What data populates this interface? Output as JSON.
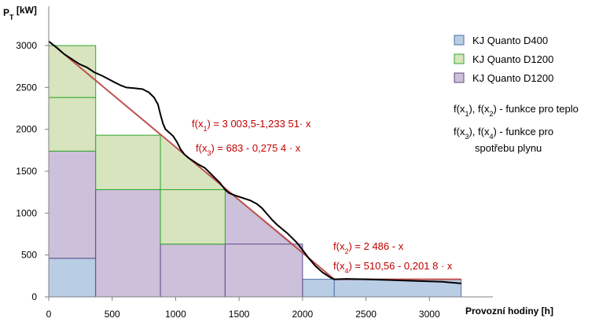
{
  "chart_data": {
    "type": "area",
    "ylabel": {
      "main": "P",
      "sub": "T",
      "unit": " [kW]"
    },
    "xlabel": "Provozní hodiny [h]",
    "xlim": [
      0,
      3500
    ],
    "ylim": [
      0,
      3000
    ],
    "xticks": [
      0,
      500,
      1000,
      1500,
      2000,
      2500,
      3000
    ],
    "yticks": [
      0,
      500,
      1000,
      1500,
      2000,
      2500,
      3000
    ],
    "grid": false,
    "legend_position": "right",
    "colors": {
      "d400_fill": "#b9cde5",
      "d400_stroke": "#4f6fa8",
      "d1200_green_fill": "#d7e4bd",
      "d1200_green_stroke": "#2ea82e",
      "d1200_purple_fill": "#ccc0da",
      "d1200_purple_stroke": "#5c4a87",
      "trend": "#c0504d",
      "curve": "#000000",
      "formula": "#c00000"
    },
    "blocks": [
      {
        "series": "D400",
        "x0": 0,
        "x1": 370,
        "y0": 0,
        "y1": 460
      },
      {
        "series": "D400",
        "x0": 370,
        "x1": 2250,
        "y0": 0,
        "y1": 0
      },
      {
        "series": "D400",
        "x0": 2000,
        "x1": 2250,
        "y0": 0,
        "y1": 210
      },
      {
        "series": "D400",
        "x0": 2250,
        "x1": 3250,
        "y0": 0,
        "y1": 210
      },
      {
        "series": "D1200-purple",
        "x0": 0,
        "x1": 370,
        "y0": 460,
        "y1": 1740
      },
      {
        "series": "D1200-purple",
        "x0": 370,
        "x1": 880,
        "y0": 0,
        "y1": 1280
      },
      {
        "series": "D1200-purple",
        "x0": 880,
        "x1": 1390,
        "y0": 0,
        "y1": 630
      },
      {
        "series": "D1200-purple",
        "x0": 1390,
        "x1": 2000,
        "y0": 0,
        "y1": 630
      },
      {
        "series": "D1200-green",
        "x0": 0,
        "x1": 370,
        "y0": 1740,
        "y1": 2380
      },
      {
        "series": "D1200-green",
        "x0": 0,
        "x1": 370,
        "y0": 2380,
        "y1": 3000
      },
      {
        "series": "D1200-green",
        "x0": 370,
        "x1": 880,
        "y0": 1280,
        "y1": 1930
      },
      {
        "series": "D1200-green",
        "x0": 880,
        "x1": 1390,
        "y0": 630,
        "y1": 1280
      }
    ],
    "green_wedges": [
      {
        "points": [
          [
            0,
            3000
          ],
          [
            370,
            2550
          ],
          [
            370,
            1930
          ],
          [
            880,
            1930
          ],
          [
            880,
            1920
          ],
          [
            1390,
            1290
          ],
          [
            1390,
            1280
          ],
          [
            0,
            1280
          ]
        ]
      }
    ],
    "purple_wedges": [
      {
        "points": [
          [
            1390,
            1280
          ],
          [
            1390,
            630
          ],
          [
            2000,
            630
          ],
          [
            2000,
            550
          ],
          [
            1440,
            1240
          ]
        ]
      }
    ],
    "series": [
      {
        "name": "KJ Quanto  D400",
        "fill": "#b9cde5",
        "stroke": "#4f6fa8"
      },
      {
        "name": "KJ Quanto  D1200",
        "fill": "#d7e4bd",
        "stroke": "#2ea82e"
      },
      {
        "name": "KJ Quanto  D1200",
        "fill": "#ccc0da",
        "stroke": "#5c4a87"
      }
    ],
    "trend_line": [
      [
        0,
        3050
      ],
      [
        2250,
        210
      ],
      [
        3250,
        210
      ]
    ],
    "load_curve": [
      [
        0,
        3050
      ],
      [
        60,
        2980
      ],
      [
        120,
        2900
      ],
      [
        180,
        2840
      ],
      [
        240,
        2780
      ],
      [
        300,
        2740
      ],
      [
        360,
        2680
      ],
      [
        420,
        2640
      ],
      [
        470,
        2600
      ],
      [
        520,
        2560
      ],
      [
        560,
        2530
      ],
      [
        610,
        2500
      ],
      [
        680,
        2490
      ],
      [
        740,
        2480
      ],
      [
        790,
        2440
      ],
      [
        830,
        2380
      ],
      [
        860,
        2300
      ],
      [
        880,
        2180
      ],
      [
        900,
        2070
      ],
      [
        920,
        2000
      ],
      [
        950,
        1960
      ],
      [
        980,
        1920
      ],
      [
        1010,
        1850
      ],
      [
        1040,
        1760
      ],
      [
        1070,
        1700
      ],
      [
        1100,
        1660
      ],
      [
        1140,
        1620
      ],
      [
        1180,
        1580
      ],
      [
        1230,
        1540
      ],
      [
        1270,
        1480
      ],
      [
        1310,
        1420
      ],
      [
        1350,
        1360
      ],
      [
        1390,
        1280
      ],
      [
        1420,
        1240
      ],
      [
        1470,
        1210
      ],
      [
        1530,
        1180
      ],
      [
        1590,
        1150
      ],
      [
        1640,
        1110
      ],
      [
        1680,
        1060
      ],
      [
        1720,
        990
      ],
      [
        1760,
        920
      ],
      [
        1800,
        860
      ],
      [
        1840,
        810
      ],
      [
        1880,
        760
      ],
      [
        1920,
        700
      ],
      [
        1960,
        640
      ],
      [
        2000,
        560
      ],
      [
        2050,
        460
      ],
      [
        2100,
        370
      ],
      [
        2160,
        290
      ],
      [
        2220,
        230
      ],
      [
        2250,
        210
      ],
      [
        2350,
        215
      ],
      [
        2500,
        210
      ],
      [
        2700,
        200
      ],
      [
        2900,
        190
      ],
      [
        3100,
        180
      ],
      [
        3250,
        160
      ]
    ],
    "formulas": [
      {
        "pre": "f(x",
        "sub": "1",
        "post": ") = 3 003,5-1,233 51· x"
      },
      {
        "pre": "f(x",
        "sub": "3",
        "post": ") = 683  - 0,275 4 · x"
      },
      {
        "pre": "f(x",
        "sub": "2",
        "post": ") = 2 486 - x"
      },
      {
        "pre": "f(x",
        "sub": "4",
        "post": ") = 510,56  - 0,201 8 ·  x"
      }
    ],
    "notes": [
      {
        "parts": [
          "f(x",
          "1",
          "), f(x",
          "2",
          ")  - funkce pro teplo"
        ]
      },
      {
        "parts": [
          "f(x",
          "3",
          "), f(x",
          "4",
          ")  - funkce pro"
        ]
      },
      {
        "parts": [
          "spotřebu plynu"
        ]
      }
    ]
  }
}
